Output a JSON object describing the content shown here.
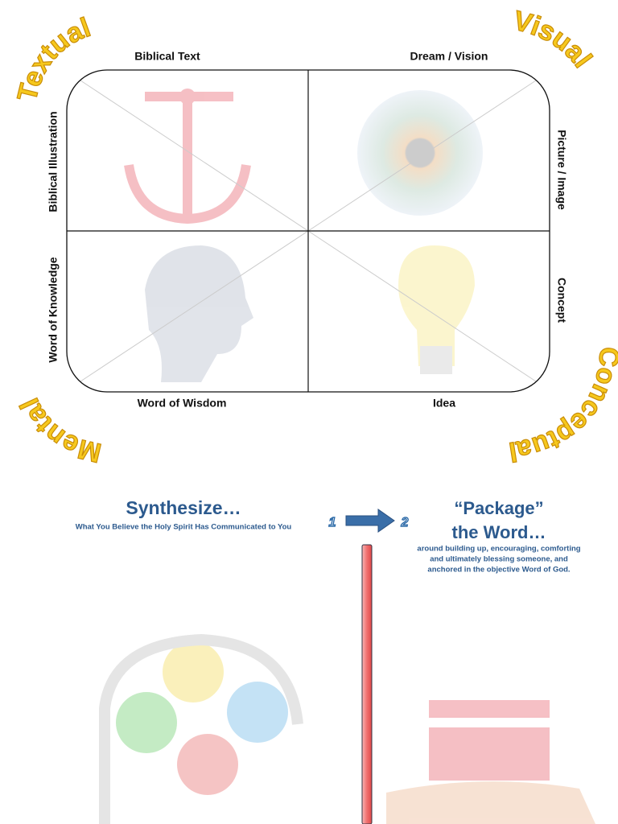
{
  "corners": {
    "top_left": "Textual",
    "top_right": "Visual",
    "bottom_left": "Mental",
    "bottom_right": "Conceptual"
  },
  "quadrant_labels": {
    "top_left": "Biblical Text",
    "top_right": "Dream / Vision",
    "left_upper": "Biblical Illustration",
    "right_upper": "Picture / Image",
    "left_lower": "Word of Knowledge",
    "right_lower": "Concept",
    "bottom_left": "Word of Wisdom",
    "bottom_right": "Idea"
  },
  "steps": [
    {
      "number": "1",
      "title": "Synthesize…",
      "subtitle": "What You Believe the Holy Spirit Has Communicated to You"
    },
    {
      "number": "2",
      "title_lines": [
        "“Package”",
        "the Word…"
      ],
      "description_lines": [
        "around building up, encouraging, comforting",
        "and ultimately blessing someone, and",
        "anchored in the objective Word of God."
      ]
    }
  ]
}
